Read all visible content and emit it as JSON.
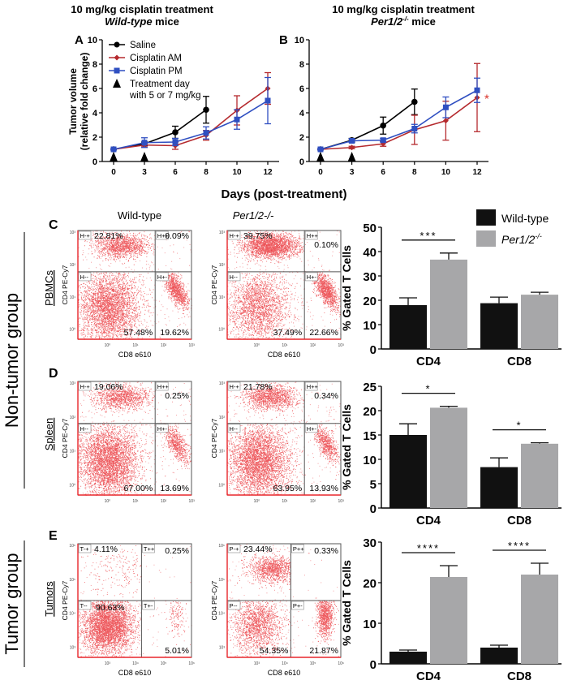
{
  "line_panels": {
    "shared_xlabel": "Days (post-treatment)",
    "ylabel_line1": "Tumor volume",
    "ylabel_line2": "(relative fold change)"
  },
  "flow_panels": {
    "col_titles": [
      "Wild-type",
      "Per1/2-/-"
    ],
    "x_axis_label": "CD8 e610",
    "y_axis_label": "CD4 PE-Cy7",
    "group_labels": [
      "Non-tumor group",
      "Tumor group"
    ]
  },
  "bar_panels": {
    "ylabel": "% Gated T Cells",
    "legend": [
      {
        "name": "Wild-type",
        "color": "#111111"
      },
      {
        "name": "Per1/2",
        "sup": "-/-",
        "color": "#a7a7a9"
      }
    ]
  },
  "chart_data": [
    {
      "id": "A",
      "type": "line",
      "panel_letter": "A",
      "title_line1": "10 mg/kg cisplatin treatment",
      "title_line2_italic": "Wild-type",
      "title_line2_rest": " mice",
      "xlabel": "Days (post-treatment)",
      "ylabel": "Tumor volume (relative fold change)",
      "x_ticks": [
        0,
        3,
        6,
        8,
        10,
        12
      ],
      "y_ticks": [
        0,
        2,
        4,
        6,
        8,
        10
      ],
      "ylim": [
        0,
        10
      ],
      "legend": [
        "Saline",
        "Cisplatin AM",
        "Cisplatin PM",
        "Treatment day with 5 or 7 mg/kg"
      ],
      "treatment_days": [
        0,
        3
      ],
      "series": [
        {
          "name": "Saline",
          "color": "#000000",
          "marker": "circle",
          "x": [
            0,
            3,
            6,
            8
          ],
          "y": [
            1.0,
            1.45,
            2.4,
            4.25
          ],
          "err": [
            0.05,
            0.15,
            0.5,
            1.1
          ]
        },
        {
          "name": "Cisplatin AM",
          "color": "#b52a2e",
          "marker": "diamond",
          "x": [
            0,
            3,
            6,
            8,
            10,
            12
          ],
          "y": [
            1.0,
            1.35,
            1.3,
            2.15,
            4.2,
            6.0
          ],
          "err": [
            0.05,
            0.15,
            0.3,
            0.4,
            1.2,
            1.3
          ]
        },
        {
          "name": "Cisplatin PM",
          "color": "#2f4fc1",
          "marker": "square",
          "x": [
            0,
            3,
            6,
            8,
            10,
            12
          ],
          "y": [
            1.0,
            1.55,
            1.6,
            2.35,
            3.45,
            5.0
          ],
          "err": [
            0.05,
            0.4,
            0.3,
            0.5,
            0.8,
            1.9
          ]
        }
      ]
    },
    {
      "id": "B",
      "type": "line",
      "panel_letter": "B",
      "title_line1": "10 mg/kg cisplatin treatment",
      "title_line2_italic": "Per1/2",
      "title_line2_sup": "-/-",
      "title_line2_rest": " mice",
      "xlabel": "Days (post-treatment)",
      "ylabel": "",
      "x_ticks": [
        0,
        3,
        6,
        8,
        10,
        12
      ],
      "y_ticks": [
        0,
        2,
        4,
        6,
        8,
        10
      ],
      "ylim": [
        0,
        10
      ],
      "treatment_days": [
        0,
        3
      ],
      "annotation": {
        "text": "*",
        "x": 12,
        "y": 5.3,
        "color": "#d9342b"
      },
      "series": [
        {
          "name": "Saline",
          "color": "#000000",
          "marker": "circle",
          "x": [
            0,
            3,
            6,
            8
          ],
          "y": [
            1.0,
            1.75,
            2.95,
            4.9
          ],
          "err": [
            0.05,
            0.15,
            0.7,
            1.05
          ]
        },
        {
          "name": "Cisplatin AM",
          "color": "#b52a2e",
          "marker": "diamond",
          "x": [
            0,
            3,
            6,
            8,
            10,
            12
          ],
          "y": [
            1.0,
            1.15,
            1.45,
            2.6,
            3.35,
            5.25
          ],
          "err": [
            0.05,
            0.1,
            0.2,
            1.2,
            1.6,
            2.8
          ]
        },
        {
          "name": "Cisplatin PM",
          "color": "#2f4fc1",
          "marker": "square",
          "x": [
            0,
            3,
            6,
            8,
            10,
            12
          ],
          "y": [
            1.0,
            1.7,
            1.75,
            2.7,
            4.45,
            5.85
          ],
          "err": [
            0.05,
            0.15,
            0.15,
            0.35,
            0.85,
            1.0
          ]
        }
      ]
    },
    {
      "id": "C-flow",
      "type": "scatter",
      "panel_letter": "C",
      "row_label": "PBMCs",
      "plots": [
        {
          "genotype": "Wild-type",
          "x_ticks": [
            "10⁰",
            "10¹",
            "10²",
            "10³"
          ],
          "y_ticks": [
            "10³",
            "10²",
            "10¹",
            "10⁰"
          ],
          "gates": {
            "UL": "H-+",
            "UR": "H++",
            "LL": "H--",
            "LR": "H+-"
          },
          "percentages": {
            "UL": "22.81%",
            "UR": "0.09%",
            "LL": "57.48%",
            "LR": "19.62%"
          }
        },
        {
          "genotype": "Per1/2-/-",
          "x_ticks": [
            "10⁰",
            "10¹",
            "10²",
            "10³"
          ],
          "y_ticks": [
            "10³",
            "10²",
            "10¹",
            "10⁰"
          ],
          "gates": {
            "UL": "H-+",
            "UR": "H++",
            "LL": "H--",
            "LR": "H+-"
          },
          "percentages": {
            "UL": "39.75%",
            "UR": "0.10%",
            "LL": "37.49%",
            "LR": "22.66%"
          }
        }
      ]
    },
    {
      "id": "C-bar",
      "type": "bar",
      "categories": [
        "CD4",
        "CD8"
      ],
      "ylabel": "% Gated T Cells",
      "ylim": [
        0,
        50
      ],
      "y_ticks": [
        0,
        10,
        20,
        30,
        40,
        50
      ],
      "series": [
        {
          "name": "Wild-type",
          "values": [
            18.0,
            18.8
          ],
          "err": [
            3.0,
            2.5
          ]
        },
        {
          "name": "Per1/2-/-",
          "values": [
            36.7,
            22.3
          ],
          "err": [
            2.7,
            1.0
          ]
        }
      ],
      "significance": [
        {
          "category": "CD4",
          "label": "***"
        }
      ]
    },
    {
      "id": "D-flow",
      "type": "scatter",
      "panel_letter": "D",
      "row_label": "Spleen",
      "plots": [
        {
          "genotype": "Wild-type",
          "x_ticks": [
            "10⁰",
            "10¹",
            "10²",
            "10³"
          ],
          "y_ticks": [
            "10³",
            "10²",
            "10¹",
            "10⁰"
          ],
          "gates": {
            "UL": "H-+",
            "UR": "H++",
            "LL": "H--",
            "LR": "H+-"
          },
          "percentages": {
            "UL": "19.06%",
            "UR": "0.25%",
            "LL": "67.00%",
            "LR": "13.69%"
          }
        },
        {
          "genotype": "Per1/2-/-",
          "x_ticks": [
            "10⁰",
            "10¹",
            "10²",
            "10³"
          ],
          "y_ticks": [
            "10³",
            "10²",
            "10¹",
            "10⁰"
          ],
          "gates": {
            "UL": "H-+",
            "UR": "H++",
            "LL": "H--",
            "LR": "H+-"
          },
          "percentages": {
            "UL": "21.78%",
            "UR": "0.34%",
            "LL": "63.95%",
            "LR": "13.93%"
          }
        }
      ]
    },
    {
      "id": "D-bar",
      "type": "bar",
      "categories": [
        "CD4",
        "CD8"
      ],
      "ylabel": "% Gated T Cells",
      "ylim": [
        0,
        25
      ],
      "y_ticks": [
        0,
        5,
        10,
        15,
        20,
        25
      ],
      "series": [
        {
          "name": "Wild-type",
          "values": [
            15.0,
            8.4
          ],
          "err": [
            2.3,
            1.9
          ]
        },
        {
          "name": "Per1/2-/-",
          "values": [
            20.6,
            13.2
          ],
          "err": [
            0.3,
            0.2
          ]
        }
      ],
      "significance": [
        {
          "category": "CD4",
          "label": "*"
        },
        {
          "category": "CD8",
          "label": "*"
        }
      ]
    },
    {
      "id": "E-flow",
      "type": "scatter",
      "panel_letter": "E",
      "row_label": "Tumors",
      "plots": [
        {
          "genotype": "Wild-type",
          "x_ticks": [
            "10³",
            "10⁴",
            "10⁵",
            "10⁶"
          ],
          "y_ticks": [
            "10⁶",
            "10⁵",
            "10⁴",
            "10³"
          ],
          "gates": {
            "UL": "T-+",
            "UR": "T++",
            "LL": "T--",
            "LR": "T+-"
          },
          "percentages": {
            "UL": "4.11%",
            "UR": "0.25%",
            "LL": "90.63%",
            "LR": "5.01%"
          }
        },
        {
          "genotype": "Per1/2-/-",
          "x_ticks": [
            "10³",
            "10⁴",
            "10⁵",
            "10⁶"
          ],
          "y_ticks": [
            "10⁶",
            "10⁵",
            "10⁴",
            "10³"
          ],
          "gates": {
            "UL": "P-+",
            "UR": "P++",
            "LL": "P--",
            "LR": "P+-"
          },
          "percentages": {
            "UL": "23.44%",
            "UR": "0.33%",
            "LL": "54.35%",
            "LR": "21.87%"
          }
        }
      ]
    },
    {
      "id": "E-bar",
      "type": "bar",
      "categories": [
        "CD4",
        "CD8"
      ],
      "ylabel": "% Gated T Cells",
      "ylim": [
        0,
        30
      ],
      "y_ticks": [
        0,
        10,
        20,
        30
      ],
      "series": [
        {
          "name": "Wild-type",
          "values": [
            3.0,
            4.0
          ],
          "err": [
            0.4,
            0.6
          ]
        },
        {
          "name": "Per1/2-/-",
          "values": [
            21.4,
            22.0
          ],
          "err": [
            2.8,
            2.8
          ]
        }
      ],
      "significance": [
        {
          "category": "CD4",
          "label": "****"
        },
        {
          "category": "CD8",
          "label": "****"
        }
      ]
    }
  ]
}
